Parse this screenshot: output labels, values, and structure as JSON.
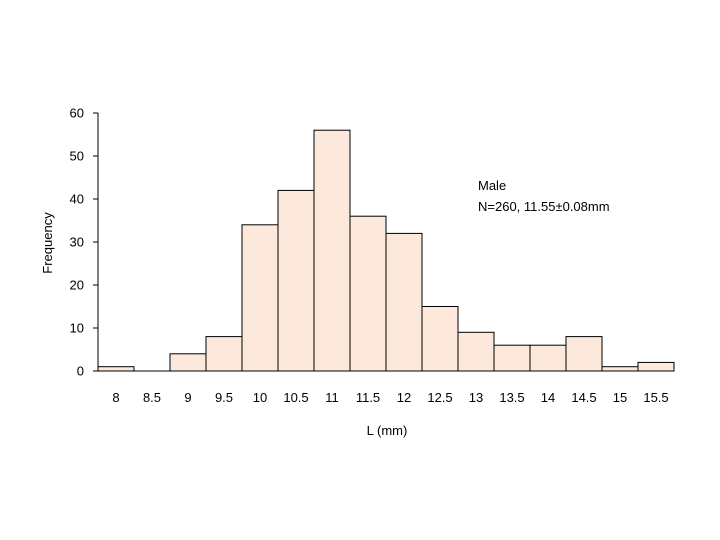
{
  "chart_data": {
    "type": "bar",
    "title": "",
    "xlabel": "L (mm)",
    "ylabel": "Frequency",
    "categories": [
      "8",
      "8.5",
      "9",
      "9.5",
      "10",
      "10.5",
      "11",
      "11.5",
      "12",
      "12.5",
      "13",
      "13.5",
      "14",
      "14.5",
      "15",
      "15.5"
    ],
    "values": [
      1,
      0,
      4,
      8,
      34,
      42,
      56,
      36,
      32,
      15,
      9,
      6,
      6,
      8,
      1,
      2
    ],
    "ylim": [
      0,
      60
    ],
    "yticks": [
      0,
      10,
      20,
      30,
      40,
      50,
      60
    ],
    "grid": false,
    "bar_fill": "#fde9dc",
    "bar_stroke": "#000000",
    "annotations": [
      "Male",
      "N=260, 11.55±0.08mm"
    ]
  }
}
